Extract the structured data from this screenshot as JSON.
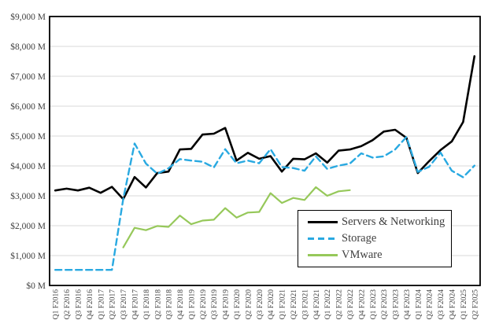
{
  "chart_data": {
    "type": "line",
    "title": "",
    "xlabel": "",
    "ylabel": "",
    "ylim": [
      0,
      9000
    ],
    "y_tick_step": 1000,
    "grid": true,
    "legend_position": "inside-bottom-right",
    "y_tick_labels": [
      "$0 M",
      "$1,000 M",
      "$2,000 M",
      "$3,000 M",
      "$4,000 M",
      "$5,000 M",
      "$6,000 M",
      "$7,000 M",
      "$8,000 M",
      "$9,000 M"
    ],
    "categories": [
      "Q1 F2016",
      "Q2 F2016",
      "Q3 F2016",
      "Q4 F2016",
      "Q1 F2017",
      "Q2 F2017",
      "Q3 F2017",
      "Q4 F2017",
      "Q1 F2018",
      "Q2 F2018",
      "Q3 F2018",
      "Q4 F2018",
      "Q1 F2019",
      "Q2 F2019",
      "Q3 F2019",
      "Q4 F2019",
      "Q1 F2020",
      "Q2 F2020",
      "Q3 F2020",
      "Q4 F2020",
      "Q1 F2021",
      "Q2 F2021",
      "Q3 F2021",
      "Q4 F2021",
      "Q1 F2022",
      "Q2 F2022",
      "Q3 F2022",
      "Q4 F2022",
      "Q1 F2023",
      "Q2 F2023",
      "Q3 F2023",
      "Q4 F2023",
      "Q1 F2024",
      "Q2 F2024",
      "Q3 F2024",
      "Q4 F2024",
      "Q1 F2025",
      "Q2 F2025"
    ],
    "series": [
      {
        "name": "Servers & Networking",
        "color": "#000000",
        "style": "solid",
        "width": 2.6,
        "values": [
          3180,
          3240,
          3180,
          3270,
          3100,
          3300,
          2890,
          3630,
          3280,
          3760,
          3810,
          4550,
          4570,
          5050,
          5080,
          5270,
          4180,
          4440,
          4240,
          4330,
          3810,
          4240,
          4220,
          4420,
          4110,
          4510,
          4550,
          4660,
          4860,
          5150,
          5210,
          4940,
          3760,
          4160,
          4530,
          4820,
          5470,
          7670
        ]
      },
      {
        "name": "Storage",
        "color": "#29A9E1",
        "style": "dashed",
        "width": 2.4,
        "values": [
          520,
          520,
          520,
          520,
          520,
          520,
          2900,
          4750,
          4080,
          3740,
          3920,
          4230,
          4180,
          4140,
          3950,
          4560,
          4090,
          4180,
          4090,
          4560,
          3960,
          3930,
          3840,
          4320,
          3900,
          4010,
          4080,
          4420,
          4280,
          4320,
          4550,
          4970,
          3800,
          3970,
          4450,
          3840,
          3620,
          4010
        ]
      },
      {
        "name": "VMware",
        "color": "#96C85A",
        "style": "solid",
        "width": 2.2,
        "values": [
          null,
          null,
          null,
          null,
          null,
          null,
          1275,
          1930,
          1850,
          1990,
          1960,
          2340,
          2050,
          2170,
          2200,
          2590,
          2270,
          2440,
          2460,
          3090,
          2760,
          2930,
          2860,
          3290,
          3000,
          3150,
          3190,
          null,
          null,
          null,
          null,
          null,
          null,
          null,
          null,
          null,
          null,
          null
        ]
      }
    ],
    "colors": {
      "grid": "#D9D9D9",
      "axis_border": "#000000",
      "tick_text": "#404040",
      "background": "#FFFFFF"
    }
  }
}
